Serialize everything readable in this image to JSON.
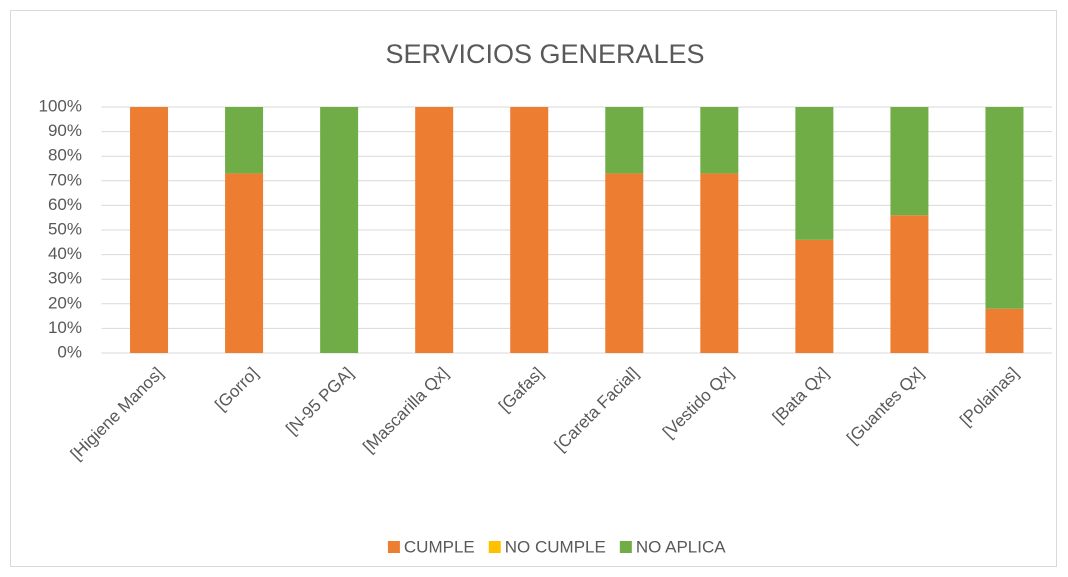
{
  "chart_data": {
    "type": "stacked_bar",
    "title": "SERVICIOS GENERALES",
    "categories": [
      "[Higiene Manos]",
      "[Gorro]",
      "[N-95 PGA]",
      "[Mascarilla Qx]",
      "[Gafas]",
      "[Careta Facial]",
      "[Vestido Qx]",
      "[Bata Qx]",
      "[Guantes Qx]",
      "[Polainas]"
    ],
    "series": [
      {
        "name": "CUMPLE",
        "color": "#ed7d31",
        "values": [
          100,
          73,
          0,
          100,
          100,
          73,
          73,
          46,
          56,
          18
        ]
      },
      {
        "name": "NO CUMPLE",
        "color": "#ffc000",
        "values": [
          0,
          0,
          0,
          0,
          0,
          0,
          0,
          0,
          0,
          0
        ]
      },
      {
        "name": "NO APLICA",
        "color": "#70ad47",
        "values": [
          0,
          27,
          100,
          0,
          0,
          27,
          27,
          54,
          44,
          82
        ]
      }
    ],
    "ylim": [
      0,
      100
    ],
    "yticks": [
      {
        "value": 0,
        "label": "0%"
      },
      {
        "value": 10,
        "label": "10%"
      },
      {
        "value": 20,
        "label": "20%"
      },
      {
        "value": 30,
        "label": "30%"
      },
      {
        "value": 40,
        "label": "40%"
      },
      {
        "value": 50,
        "label": "50%"
      },
      {
        "value": 60,
        "label": "60%"
      },
      {
        "value": 70,
        "label": "70%"
      },
      {
        "value": 80,
        "label": "80%"
      },
      {
        "value": 90,
        "label": "90%"
      },
      {
        "value": 100,
        "label": "100%"
      }
    ],
    "grid": true,
    "legend": "bottom"
  }
}
